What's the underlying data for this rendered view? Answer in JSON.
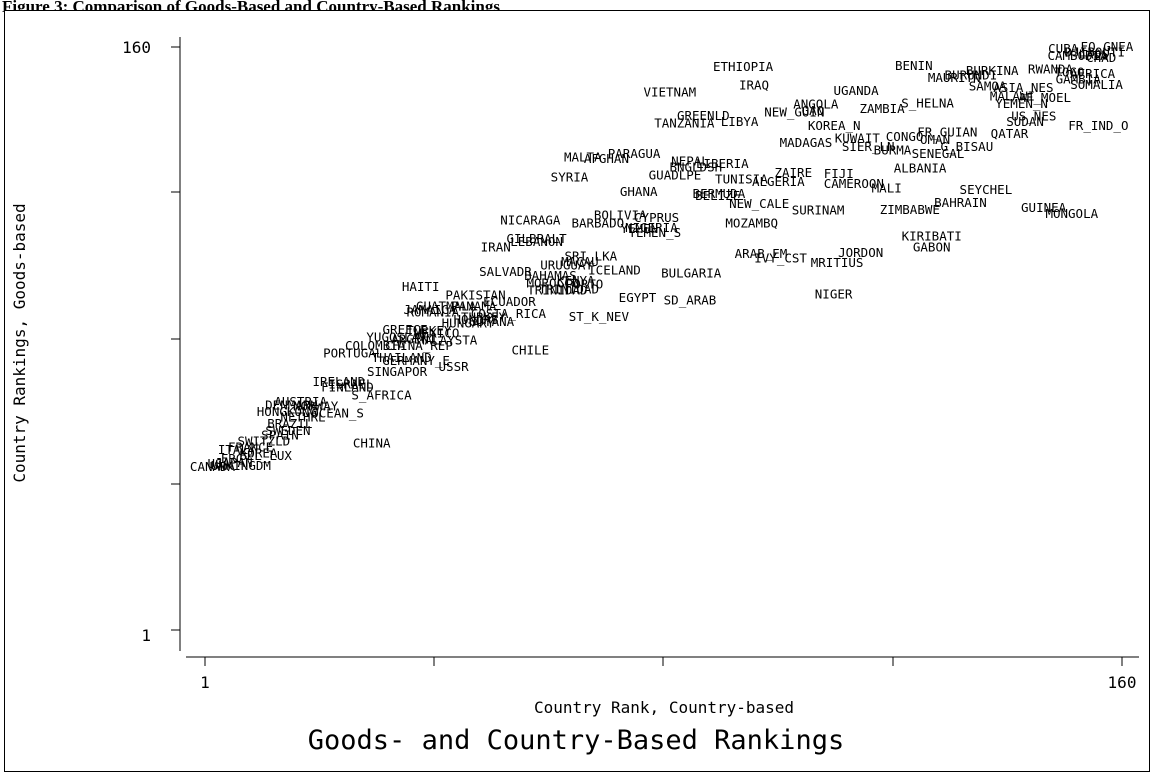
{
  "caption": "Figure 3: Comparison of Goods-Based and Country-Based Rankings",
  "chart_data": {
    "type": "scatter",
    "title": "Goods- and Country-Based Rankings",
    "xlabel": "Country Rank, Country-based",
    "ylabel": "Country Rankings, Goods-based",
    "xlim": [
      1,
      160
    ],
    "ylim": [
      1,
      160
    ],
    "xticks": [
      "1",
      "160"
    ],
    "yticks": [
      "1",
      "160"
    ],
    "grid": false,
    "marker": "country-name",
    "points": [
      {
        "name": "CUBA",
        "x": 149.8,
        "y": 159.5
      },
      {
        "name": "EQ_GNEA",
        "x": 157.4,
        "y": 160.0
      },
      {
        "name": "DJIBOUTI",
        "x": 155.3,
        "y": 158.5
      },
      {
        "name": "CAMBODIA",
        "x": 152.3,
        "y": 157.5
      },
      {
        "name": "LAOS",
        "x": 155.1,
        "y": 158.0
      },
      {
        "name": "CHAD",
        "x": 156.4,
        "y": 157.0
      },
      {
        "name": "ETHIOPIA",
        "x": 94.3,
        "y": 154.5
      },
      {
        "name": "BENIN",
        "x": 123.9,
        "y": 154.8
      },
      {
        "name": "RWANDA",
        "x": 147.6,
        "y": 153.9
      },
      {
        "name": "BURKINA",
        "x": 137.5,
        "y": 153.4
      },
      {
        "name": "TOGO",
        "x": 150.9,
        "y": 153.1
      },
      {
        "name": "AFRICA",
        "x": 154.9,
        "y": 152.6
      },
      {
        "name": "BURUNDI",
        "x": 133.8,
        "y": 152.2
      },
      {
        "name": "MAURITN",
        "x": 130.9,
        "y": 151.5
      },
      {
        "name": "GAMBIA",
        "x": 152.4,
        "y": 151.1
      },
      {
        "name": "IRAQ",
        "x": 96.2,
        "y": 149.5
      },
      {
        "name": "SOMALIA",
        "x": 155.6,
        "y": 149.6
      },
      {
        "name": "SAMOA",
        "x": 136.7,
        "y": 149.2
      },
      {
        "name": "ASIA_NES",
        "x": 142.9,
        "y": 148.8
      },
      {
        "name": "VIETNAM",
        "x": 81.6,
        "y": 147.6
      },
      {
        "name": "UGANDA",
        "x": 113.9,
        "y": 148.0
      },
      {
        "name": "MALAWI",
        "x": 141.0,
        "y": 146.5
      },
      {
        "name": "AF_MOEL",
        "x": 146.6,
        "y": 146.1
      },
      {
        "name": "S_HELNA",
        "x": 126.3,
        "y": 144.6
      },
      {
        "name": "ANGOLA",
        "x": 106.9,
        "y": 144.3
      },
      {
        "name": "YEMEN_N",
        "x": 142.6,
        "y": 144.4
      },
      {
        "name": "ZAMBIA",
        "x": 118.4,
        "y": 143.1
      },
      {
        "name": "GAO",
        "x": 106.4,
        "y": 142.6
      },
      {
        "name": "NEW_GUIN",
        "x": 103.2,
        "y": 142.1
      },
      {
        "name": "GREENLD",
        "x": 87.4,
        "y": 141.2
      },
      {
        "name": "US_NES",
        "x": 144.7,
        "y": 141.0
      },
      {
        "name": "SUDAN",
        "x": 143.2,
        "y": 139.6
      },
      {
        "name": "LIBYA",
        "x": 93.7,
        "y": 139.6
      },
      {
        "name": "TANZANIA",
        "x": 84.1,
        "y": 139.2
      },
      {
        "name": "FR_IND_O",
        "x": 155.9,
        "y": 138.5
      },
      {
        "name": "KOREA_N",
        "x": 110.1,
        "y": 138.4
      },
      {
        "name": "FR_GUIAN",
        "x": 129.7,
        "y": 136.7
      },
      {
        "name": "QATAR",
        "x": 140.5,
        "y": 136.3
      },
      {
        "name": "KUWAIT",
        "x": 114.1,
        "y": 135.1
      },
      {
        "name": "CONGO",
        "x": 122.3,
        "y": 135.4
      },
      {
        "name": "OMAN",
        "x": 127.6,
        "y": 134.6
      },
      {
        "name": "MADAGAS",
        "x": 105.2,
        "y": 133.8
      },
      {
        "name": "SIER_LN",
        "x": 116.0,
        "y": 132.7
      },
      {
        "name": "G_BISAU",
        "x": 133.1,
        "y": 132.7
      },
      {
        "name": "BURMA",
        "x": 120.2,
        "y": 131.8
      },
      {
        "name": "SENEGAL",
        "x": 128.1,
        "y": 130.8
      },
      {
        "name": "PARAGUA",
        "x": 75.4,
        "y": 130.8
      },
      {
        "name": "MALTA",
        "x": 66.5,
        "y": 129.8
      },
      {
        "name": "AFGHAN",
        "x": 70.6,
        "y": 129.5
      },
      {
        "name": "NEPAL",
        "x": 85.1,
        "y": 128.8
      },
      {
        "name": "LIBERIA",
        "x": 90.7,
        "y": 128.1
      },
      {
        "name": "BNGLDSH",
        "x": 86.1,
        "y": 127.2
      },
      {
        "name": "ALBANIA",
        "x": 125.0,
        "y": 126.9
      },
      {
        "name": "ZAIRE",
        "x": 103.0,
        "y": 125.7
      },
      {
        "name": "FIJI",
        "x": 110.9,
        "y": 125.3
      },
      {
        "name": "GUADLPE",
        "x": 82.5,
        "y": 124.9
      },
      {
        "name": "SYRIA",
        "x": 64.2,
        "y": 124.4
      },
      {
        "name": "TUNISIA",
        "x": 94.0,
        "y": 123.8
      },
      {
        "name": "ALGERIA",
        "x": 100.4,
        "y": 123.2
      },
      {
        "name": "CAMEROON",
        "x": 113.5,
        "y": 122.7
      },
      {
        "name": "SEYCHEL",
        "x": 136.4,
        "y": 121.0
      },
      {
        "name": "MALI",
        "x": 119.2,
        "y": 121.4
      },
      {
        "name": "GHANA",
        "x": 76.2,
        "y": 120.4
      },
      {
        "name": "BERMUDA",
        "x": 90.1,
        "y": 119.9
      },
      {
        "name": "BELIZE",
        "x": 89.9,
        "y": 119.3
      },
      {
        "name": "BAHRAIN",
        "x": 132.0,
        "y": 117.5
      },
      {
        "name": "NEW_CALE",
        "x": 97.1,
        "y": 117.2
      },
      {
        "name": "GUINEA",
        "x": 146.4,
        "y": 116.1
      },
      {
        "name": "ZIMBABWE",
        "x": 123.2,
        "y": 115.6
      },
      {
        "name": "SURINAM",
        "x": 107.3,
        "y": 115.4
      },
      {
        "name": "MONGOLA",
        "x": 151.3,
        "y": 114.5
      },
      {
        "name": "BOLIVIA",
        "x": 73.0,
        "y": 114.1
      },
      {
        "name": "CYPRUS",
        "x": 79.3,
        "y": 113.3
      },
      {
        "name": "NICARAGA",
        "x": 57.4,
        "y": 112.7
      },
      {
        "name": "BARBADO",
        "x": 69.1,
        "y": 111.8
      },
      {
        "name": "MOZAMBQ",
        "x": 95.8,
        "y": 111.8
      },
      {
        "name": "NIGERIA",
        "x": 78.4,
        "y": 110.7
      },
      {
        "name": "YEMEN",
        "x": 76.3,
        "y": 110.3
      },
      {
        "name": "YEMEN_S",
        "x": 79.0,
        "y": 109.3
      },
      {
        "name": "KIRIBATI",
        "x": 127.0,
        "y": 108.3
      },
      {
        "name": "GILBRALT",
        "x": 58.5,
        "y": 107.6
      },
      {
        "name": "LEBANON",
        "x": 58.5,
        "y": 106.8
      },
      {
        "name": "GABON",
        "x": 127.0,
        "y": 105.3
      },
      {
        "name": "IRAN",
        "x": 51.4,
        "y": 105.3
      },
      {
        "name": "JORDON",
        "x": 114.7,
        "y": 103.8
      },
      {
        "name": "ARAB_EM",
        "x": 97.4,
        "y": 103.5
      },
      {
        "name": "SRI_LKA",
        "x": 67.9,
        "y": 102.8
      },
      {
        "name": "IVY_CST",
        "x": 100.8,
        "y": 102.3
      },
      {
        "name": "MACAU",
        "x": 66.0,
        "y": 101.3
      },
      {
        "name": "MRITIUS",
        "x": 110.6,
        "y": 101.1
      },
      {
        "name": "URUGUAY",
        "x": 63.7,
        "y": 100.4
      },
      {
        "name": "ICELAND",
        "x": 72.0,
        "y": 99.1
      },
      {
        "name": "SALVADR",
        "x": 53.1,
        "y": 98.7
      },
      {
        "name": "BULGARIA",
        "x": 85.3,
        "y": 98.2
      },
      {
        "name": "BAHAMAS",
        "x": 60.9,
        "y": 97.6
      },
      {
        "name": "KENYA",
        "x": 65.3,
        "y": 96.2
      },
      {
        "name": "MOROCCO",
        "x": 61.3,
        "y": 95.5
      },
      {
        "name": "PORTO",
        "x": 66.8,
        "y": 95.2
      },
      {
        "name": "TRINIDAD",
        "x": 64.1,
        "y": 93.9
      },
      {
        "name": "TRINIDAD",
        "x": 62.1,
        "y": 93.6
      },
      {
        "name": "HAITI",
        "x": 38.4,
        "y": 94.5
      },
      {
        "name": "NIGER",
        "x": 110.0,
        "y": 92.5
      },
      {
        "name": "PAKISTAN",
        "x": 47.9,
        "y": 92.2
      },
      {
        "name": "EGYPT",
        "x": 76.0,
        "y": 91.6
      },
      {
        "name": "SD_ARAB",
        "x": 85.1,
        "y": 90.9
      },
      {
        "name": "ECUADOR",
        "x": 53.8,
        "y": 90.4
      },
      {
        "name": "PANAMA",
        "x": 47.6,
        "y": 89.2
      },
      {
        "name": "GUATMALA",
        "x": 42.8,
        "y": 89.2
      },
      {
        "name": "JAMAICA",
        "x": 40.0,
        "y": 88.3
      },
      {
        "name": "ROMANIA",
        "x": 40.5,
        "y": 87.6
      },
      {
        "name": "COSTA_RICA",
        "x": 53.6,
        "y": 87.2
      },
      {
        "name": "TURKEY",
        "x": 49.3,
        "y": 86.2
      },
      {
        "name": "ST_K_NEV",
        "x": 69.3,
        "y": 86.4
      },
      {
        "name": "HONDRS",
        "x": 48.0,
        "y": 85.6
      },
      {
        "name": "GUYANA",
        "x": 50.7,
        "y": 85.0
      },
      {
        "name": "HUNGARY",
        "x": 46.6,
        "y": 84.6
      },
      {
        "name": "GREECE",
        "x": 35.7,
        "y": 82.8
      },
      {
        "name": "TURKEY",
        "x": 39.8,
        "y": 82.5
      },
      {
        "name": "MEXICO",
        "x": 41.2,
        "y": 81.8
      },
      {
        "name": "YUGOSLAV",
        "x": 34.2,
        "y": 80.8
      },
      {
        "name": "ARGENT",
        "x": 37.2,
        "y": 80.2
      },
      {
        "name": "MALAYSTA",
        "x": 43.0,
        "y": 79.9
      },
      {
        "name": "COLOMBIA",
        "x": 30.5,
        "y": 78.5
      },
      {
        "name": "CHINA_REP",
        "x": 38.1,
        "y": 78.4
      },
      {
        "name": "CHILE",
        "x": 57.4,
        "y": 77.2
      },
      {
        "name": "PORTUGAL",
        "x": 26.7,
        "y": 76.4
      },
      {
        "name": "THAILAND",
        "x": 35.1,
        "y": 75.2
      },
      {
        "name": "GERMANY_E",
        "x": 37.6,
        "y": 74.3
      },
      {
        "name": "USSR",
        "x": 44.1,
        "y": 72.7
      },
      {
        "name": "SINGAPOR",
        "x": 34.3,
        "y": 71.4
      },
      {
        "name": "IRELAND",
        "x": 24.2,
        "y": 68.7
      },
      {
        "name": "ISRAEL",
        "x": 26.3,
        "y": 67.9
      },
      {
        "name": "FINLAND",
        "x": 25.7,
        "y": 67.1
      },
      {
        "name": "S_AFRICA",
        "x": 31.6,
        "y": 64.9
      },
      {
        "name": "AUSTRIA",
        "x": 17.6,
        "y": 63.2
      },
      {
        "name": "DENMARK",
        "x": 16.0,
        "y": 62.2
      },
      {
        "name": "NORWAY",
        "x": 20.2,
        "y": 61.9
      },
      {
        "name": "HONGKONG",
        "x": 15.2,
        "y": 60.4
      },
      {
        "name": "OCEAN_S",
        "x": 24.0,
        "y": 60.0
      },
      {
        "name": "NETHRL",
        "x": 18.0,
        "y": 59.0
      },
      {
        "name": "BRAZIL",
        "x": 15.7,
        "y": 57.2
      },
      {
        "name": "SWEDEN",
        "x": 15.4,
        "y": 55.3
      },
      {
        "name": "SPAIN",
        "x": 14.0,
        "y": 54.0
      },
      {
        "name": "SWITZLD",
        "x": 11.2,
        "y": 52.4
      },
      {
        "name": "CHINA",
        "x": 29.9,
        "y": 51.9
      },
      {
        "name": "FRANCE",
        "x": 8.9,
        "y": 50.8
      },
      {
        "name": "ITALY",
        "x": 6.5,
        "y": 50.1
      },
      {
        "name": "KOREA",
        "x": 10.3,
        "y": 49.2
      },
      {
        "name": "BEL_LUX",
        "x": 11.5,
        "y": 48.4
      },
      {
        "name": "FRG",
        "x": 5.7,
        "y": 47.7
      },
      {
        "name": "JAPAN",
        "x": 6.0,
        "y": 46.5
      },
      {
        "name": "UNKINGDM",
        "x": 7.2,
        "y": 45.7
      },
      {
        "name": "USA",
        "x": 3.4,
        "y": 46.3
      },
      {
        "name": "CANADA",
        "x": 2.3,
        "y": 45.4
      }
    ]
  }
}
